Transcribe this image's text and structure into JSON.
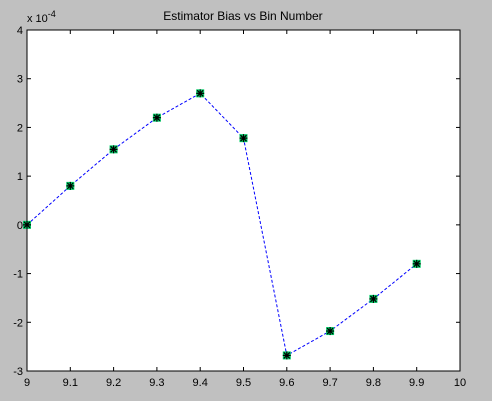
{
  "chart_data": {
    "type": "line",
    "title": "Estimator Bias vs Bin Number",
    "xlabel": "",
    "ylabel": "",
    "y_multiplier_label": "x 10",
    "y_multiplier_exponent": "-4",
    "xlim": [
      9,
      10
    ],
    "ylim": [
      -3,
      4
    ],
    "xticks": [
      "9",
      "9.1",
      "9.2",
      "9.3",
      "9.4",
      "9.5",
      "9.6",
      "9.7",
      "9.8",
      "9.9",
      "10"
    ],
    "yticks": [
      "-3",
      "-2",
      "-1",
      "0",
      "1",
      "2",
      "3",
      "4"
    ],
    "grid": false,
    "line_style": "dashed",
    "marker": "asterisk-square",
    "colors": {
      "line": "#0000ff",
      "marker_fill": "#00cc66",
      "marker_star": "#000000",
      "figure_background": "#c0c0c0",
      "axes_background": "#ffffff"
    },
    "series": [
      {
        "x": [
          9.0,
          9.1,
          9.2,
          9.3,
          9.4,
          9.5,
          9.6,
          9.7,
          9.8,
          9.9
        ],
        "values": [
          0.0,
          0.8,
          1.55,
          2.2,
          2.7,
          1.78,
          -2.68,
          -2.18,
          -1.52,
          -0.8
        ]
      }
    ]
  }
}
